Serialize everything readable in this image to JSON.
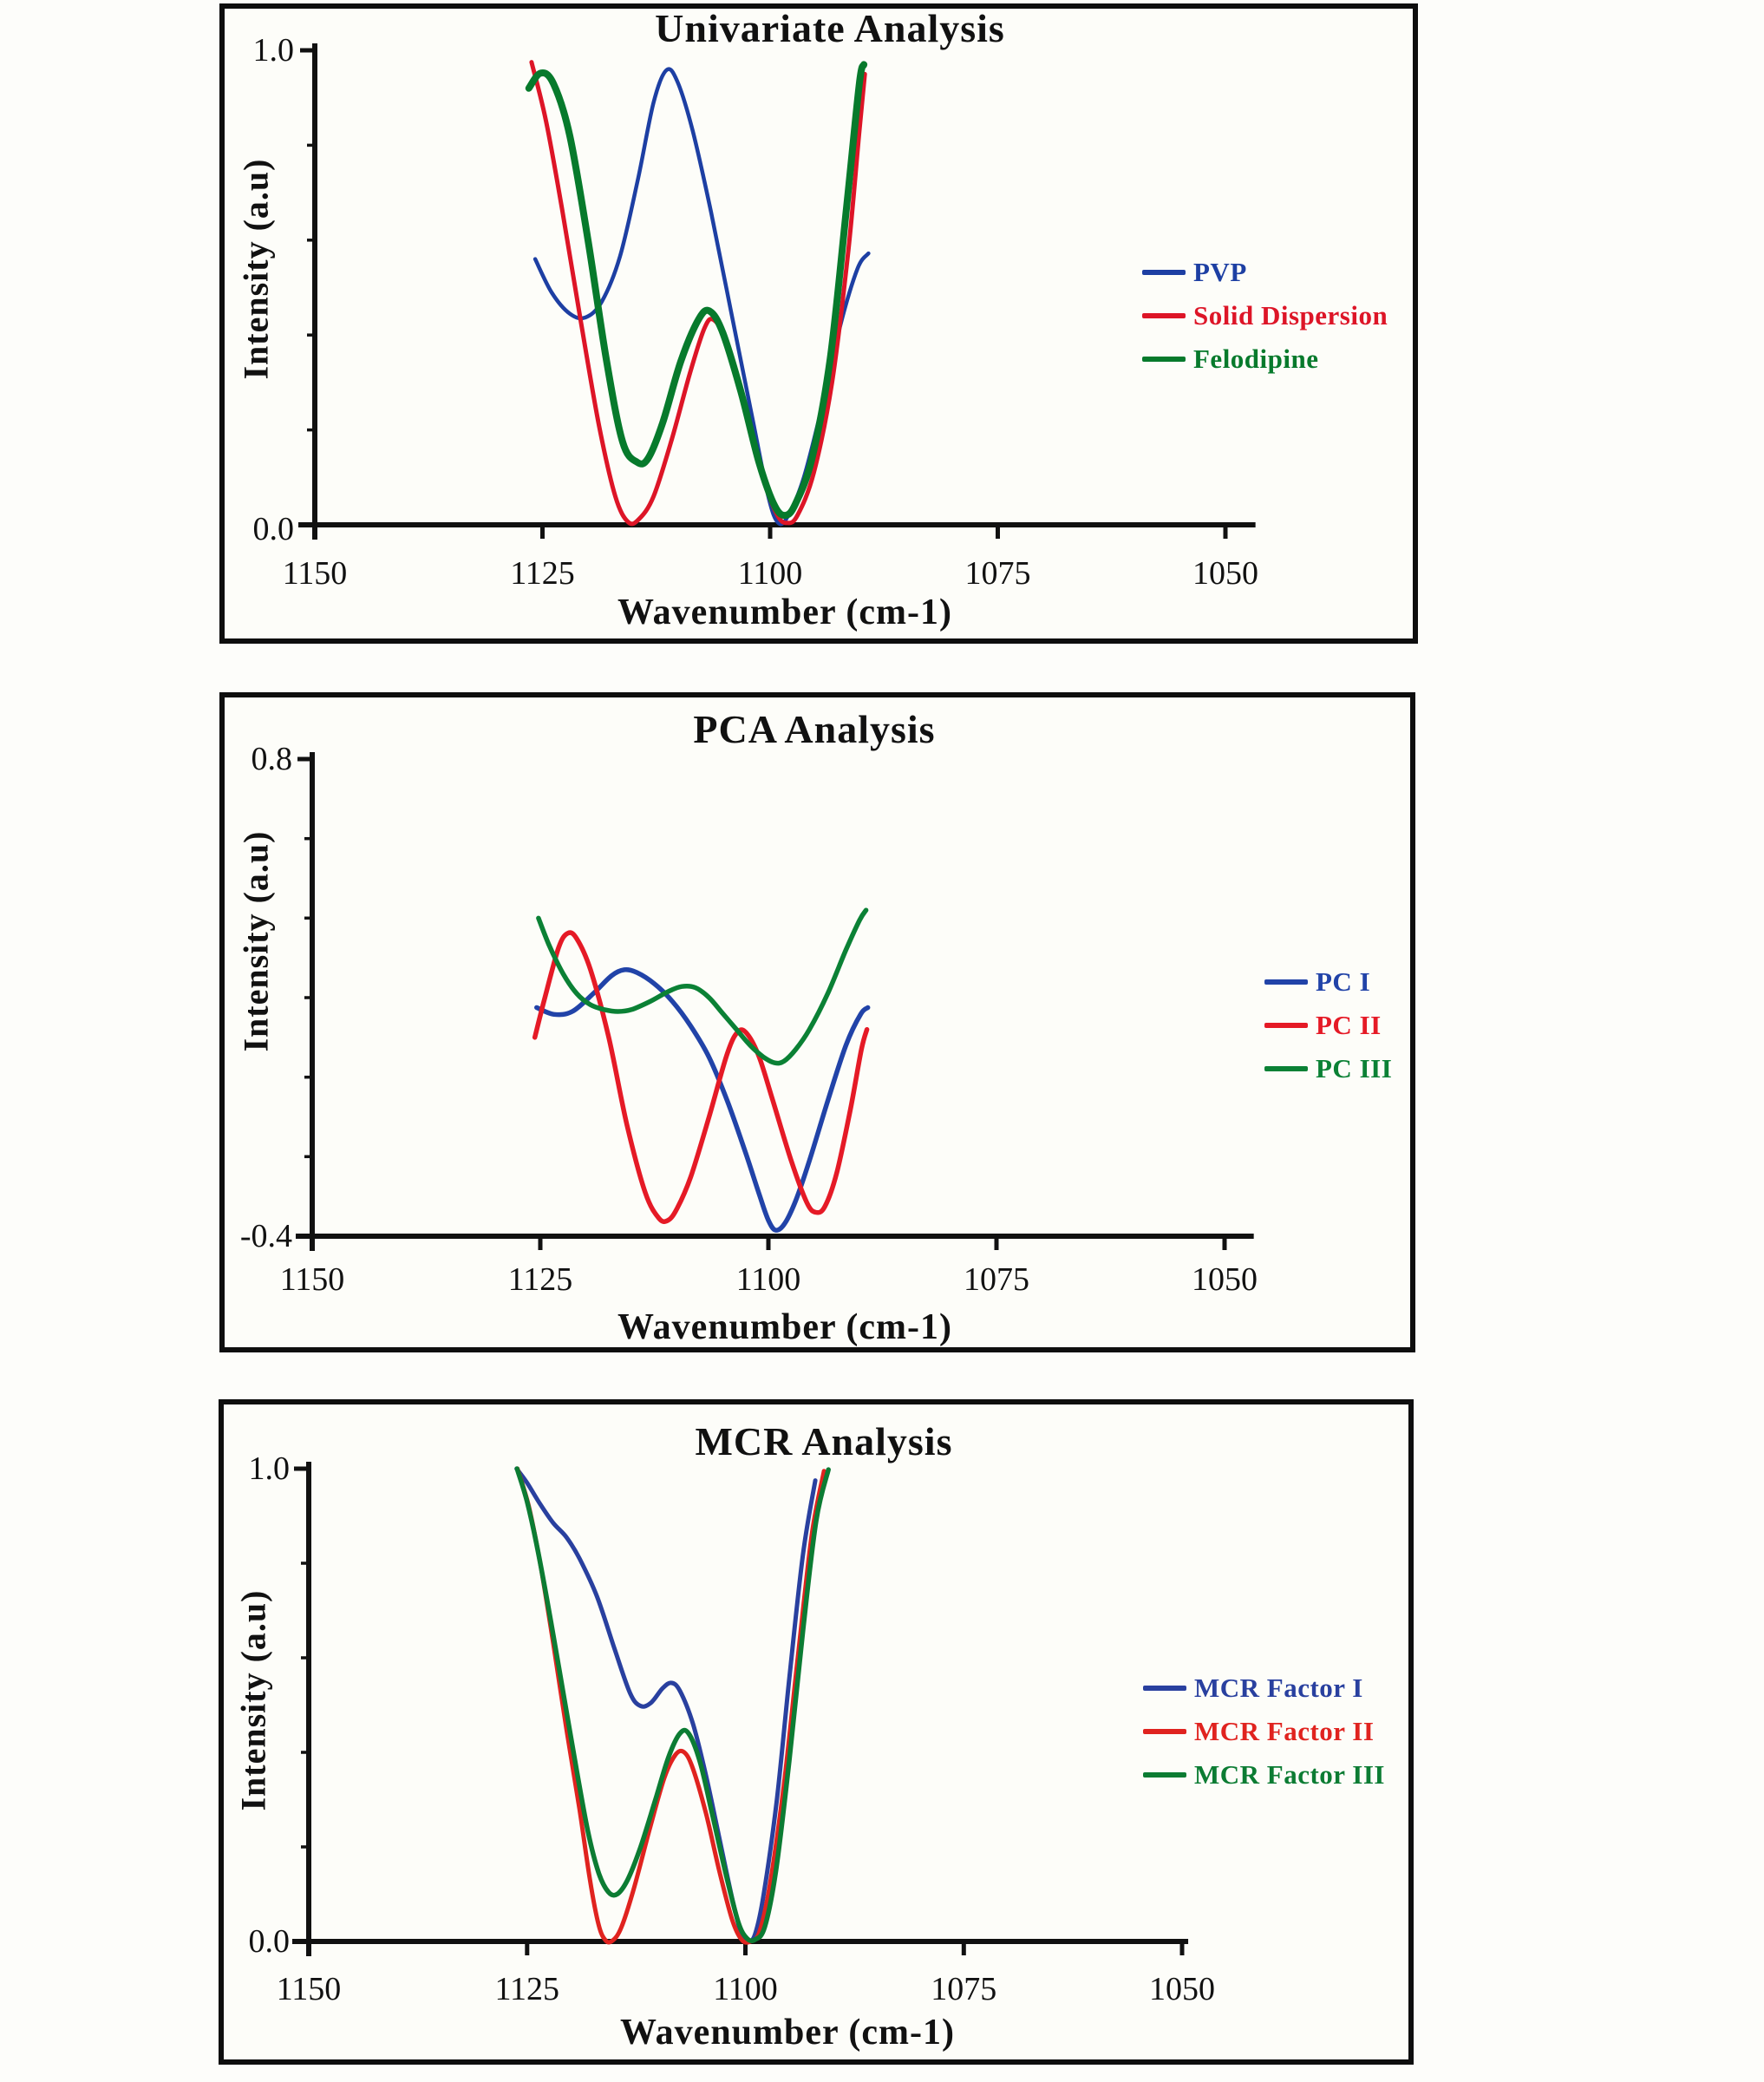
{
  "page": {
    "background": "#fdfdfa",
    "axis_color": "#111111"
  },
  "chart_data": [
    {
      "type": "line",
      "title": "Univariate Analysis",
      "xlabel": "Wavenumber (cm-1)",
      "ylabel": "Intensity (a.u)",
      "x_ticks": [
        "1150",
        "1125",
        "1100",
        "1075",
        "1050"
      ],
      "x_tick_values": [
        1150,
        1125,
        1100,
        1075,
        1050
      ],
      "x_axis_reversed": true,
      "xlim": [
        1150,
        1046.7
      ],
      "ylim": [
        0.0,
        1.0
      ],
      "y_tick_top": "1.0",
      "y_tick_bottom": "0.0",
      "grid": false,
      "legend_position": "right",
      "series": [
        {
          "name": "PVP",
          "color": "#1d3fa3",
          "width": 4.5,
          "points": [
            [
              1125.8,
              0.56
            ],
            [
              1124,
              0.49
            ],
            [
              1122,
              0.445
            ],
            [
              1120.3,
              0.437
            ],
            [
              1118.5,
              0.47
            ],
            [
              1116.5,
              0.565
            ],
            [
              1114.5,
              0.73
            ],
            [
              1112.8,
              0.89
            ],
            [
              1111.4,
              0.958
            ],
            [
              1110.2,
              0.935
            ],
            [
              1108.5,
              0.83
            ],
            [
              1106.5,
              0.66
            ],
            [
              1104.3,
              0.45
            ],
            [
              1102,
              0.23
            ],
            [
              1100.2,
              0.06
            ],
            [
              1099.1,
              0.004
            ],
            [
              1098,
              0.02
            ],
            [
              1096.3,
              0.1
            ],
            [
              1094.3,
              0.25
            ],
            [
              1092.3,
              0.42
            ],
            [
              1090.4,
              0.54
            ],
            [
              1089.2,
              0.572
            ]
          ]
        },
        {
          "name": "Solid Dispersion",
          "color": "#dd1527",
          "width": 5,
          "points": [
            [
              1126.2,
              0.975
            ],
            [
              1124.6,
              0.85
            ],
            [
              1122.8,
              0.66
            ],
            [
              1120.8,
              0.43
            ],
            [
              1118.8,
              0.21
            ],
            [
              1117,
              0.06
            ],
            [
              1115.6,
              0.006
            ],
            [
              1114.4,
              0.012
            ],
            [
              1112.8,
              0.06
            ],
            [
              1110.8,
              0.18
            ],
            [
              1108.8,
              0.32
            ],
            [
              1107.2,
              0.415
            ],
            [
              1106.2,
              0.432
            ],
            [
              1104.8,
              0.385
            ],
            [
              1102.8,
              0.25
            ],
            [
              1100.8,
              0.1
            ],
            [
              1099.2,
              0.02
            ],
            [
              1098.1,
              0.004
            ],
            [
              1097,
              0.02
            ],
            [
              1095.2,
              0.11
            ],
            [
              1093.2,
              0.3
            ],
            [
              1091.4,
              0.58
            ],
            [
              1090.2,
              0.83
            ],
            [
              1089.6,
              0.95
            ]
          ]
        },
        {
          "name": "Felodipine",
          "color": "#077a2c",
          "width": 8,
          "points": [
            [
              1126.5,
              0.92
            ],
            [
              1125.2,
              0.952
            ],
            [
              1123.8,
              0.93
            ],
            [
              1122,
              0.82
            ],
            [
              1120,
              0.6
            ],
            [
              1118,
              0.35
            ],
            [
              1116.2,
              0.175
            ],
            [
              1114.6,
              0.132
            ],
            [
              1113.4,
              0.14
            ],
            [
              1111.8,
              0.215
            ],
            [
              1109.8,
              0.345
            ],
            [
              1107.8,
              0.435
            ],
            [
              1106.6,
              0.45
            ],
            [
              1105.2,
              0.405
            ],
            [
              1103.2,
              0.28
            ],
            [
              1101.2,
              0.13
            ],
            [
              1099.5,
              0.04
            ],
            [
              1098.3,
              0.02
            ],
            [
              1097.2,
              0.045
            ],
            [
              1095.4,
              0.14
            ],
            [
              1093.4,
              0.35
            ],
            [
              1091.6,
              0.67
            ],
            [
              1090.2,
              0.93
            ],
            [
              1089.7,
              0.97
            ]
          ]
        }
      ]
    },
    {
      "type": "line",
      "title": "PCA Analysis",
      "xlabel": "Wavenumber (cm-1)",
      "ylabel": "Intensity (a.u)",
      "x_ticks": [
        "1150",
        "1125",
        "1100",
        "1075",
        "1050"
      ],
      "x_tick_values": [
        1150,
        1125,
        1100,
        1075,
        1050
      ],
      "x_axis_reversed": true,
      "xlim": [
        1150,
        1046.8
      ],
      "ylim": [
        -0.4,
        0.8
      ],
      "y_tick_top": "0.8",
      "y_tick_bottom": "-0.4",
      "grid": false,
      "legend_position": "right",
      "series": [
        {
          "name": "PC I",
          "color": "#2143a8",
          "width": 5.5,
          "points": [
            [
              1125.4,
              0.175
            ],
            [
              1123.5,
              0.158
            ],
            [
              1121.5,
              0.165
            ],
            [
              1119.2,
              0.21
            ],
            [
              1117.2,
              0.255
            ],
            [
              1115.8,
              0.27
            ],
            [
              1114.4,
              0.263
            ],
            [
              1112.5,
              0.235
            ],
            [
              1110.5,
              0.19
            ],
            [
              1108.5,
              0.128
            ],
            [
              1106.5,
              0.05
            ],
            [
              1104.5,
              -0.06
            ],
            [
              1102.5,
              -0.19
            ],
            [
              1101,
              -0.295
            ],
            [
              1100,
              -0.36
            ],
            [
              1099.2,
              -0.385
            ],
            [
              1098.2,
              -0.368
            ],
            [
              1097,
              -0.31
            ],
            [
              1095.5,
              -0.21
            ],
            [
              1093.5,
              -0.06
            ],
            [
              1091.5,
              0.08
            ],
            [
              1089.9,
              0.158
            ],
            [
              1089.1,
              0.175
            ]
          ]
        },
        {
          "name": "PC II",
          "color": "#e51a26",
          "width": 5.5,
          "points": [
            [
              1125.6,
              0.1
            ],
            [
              1124.5,
              0.2
            ],
            [
              1123,
              0.325
            ],
            [
              1122,
              0.362
            ],
            [
              1121,
              0.348
            ],
            [
              1119.5,
              0.27
            ],
            [
              1117.5,
              0.1
            ],
            [
              1115.5,
              -0.12
            ],
            [
              1113.5,
              -0.29
            ],
            [
              1112,
              -0.355
            ],
            [
              1111,
              -0.36
            ],
            [
              1110,
              -0.33
            ],
            [
              1108.5,
              -0.25
            ],
            [
              1106.5,
              -0.1
            ],
            [
              1104.5,
              0.06
            ],
            [
              1103.3,
              0.115
            ],
            [
              1102.3,
              0.108
            ],
            [
              1101,
              0.05
            ],
            [
              1099.5,
              -0.06
            ],
            [
              1097.5,
              -0.21
            ],
            [
              1095.8,
              -0.315
            ],
            [
              1094.8,
              -0.34
            ],
            [
              1093.8,
              -0.325
            ],
            [
              1092.5,
              -0.24
            ],
            [
              1091,
              -0.08
            ],
            [
              1089.8,
              0.07
            ],
            [
              1089.2,
              0.12
            ]
          ]
        },
        {
          "name": "PC III",
          "color": "#0b8135",
          "width": 5.5,
          "points": [
            [
              1125.2,
              0.4
            ],
            [
              1124,
              0.33
            ],
            [
              1122.5,
              0.26
            ],
            [
              1121,
              0.21
            ],
            [
              1119.5,
              0.182
            ],
            [
              1118,
              0.17
            ],
            [
              1116.5,
              0.165
            ],
            [
              1115,
              0.17
            ],
            [
              1113,
              0.19
            ],
            [
              1111,
              0.215
            ],
            [
              1109.5,
              0.228
            ],
            [
              1108,
              0.225
            ],
            [
              1106.5,
              0.2
            ],
            [
              1105,
              0.16
            ],
            [
              1103.5,
              0.12
            ],
            [
              1102,
              0.08
            ],
            [
              1100.5,
              0.05
            ],
            [
              1099.3,
              0.036
            ],
            [
              1098.3,
              0.04
            ],
            [
              1097,
              0.07
            ],
            [
              1095.5,
              0.12
            ],
            [
              1093.5,
              0.21
            ],
            [
              1091.5,
              0.32
            ],
            [
              1090,
              0.395
            ],
            [
              1089.3,
              0.42
            ]
          ]
        }
      ]
    },
    {
      "type": "line",
      "title": "MCR Analysis",
      "xlabel": "Wavenumber (cm-1)",
      "ylabel": "Intensity (a.u)",
      "x_ticks": [
        "1150",
        "1125",
        "1100",
        "1075",
        "1050"
      ],
      "x_tick_values": [
        1150,
        1125,
        1100,
        1075,
        1050
      ],
      "x_axis_reversed": true,
      "xlim": [
        1150,
        1049.3
      ],
      "ylim": [
        0.0,
        1.0
      ],
      "y_tick_top": "1.0",
      "y_tick_bottom": "0.0",
      "grid": false,
      "legend_position": "right",
      "series": [
        {
          "name": "MCR Factor I",
          "color": "#29409f",
          "width": 5,
          "points": [
            [
              1126.2,
              1.0
            ],
            [
              1125,
              0.97
            ],
            [
              1123.5,
              0.925
            ],
            [
              1122,
              0.885
            ],
            [
              1120.5,
              0.855
            ],
            [
              1119,
              0.81
            ],
            [
              1117,
              0.73
            ],
            [
              1115,
              0.62
            ],
            [
              1113.2,
              0.525
            ],
            [
              1112,
              0.498
            ],
            [
              1110.8,
              0.505
            ],
            [
              1109.5,
              0.535
            ],
            [
              1108.5,
              0.547
            ],
            [
              1107.5,
              0.53
            ],
            [
              1106,
              0.46
            ],
            [
              1104.5,
              0.35
            ],
            [
              1103,
              0.22
            ],
            [
              1101.5,
              0.09
            ],
            [
              1100.4,
              0.01
            ],
            [
              1099.7,
              0.0
            ],
            [
              1098.9,
              0.015
            ],
            [
              1097.9,
              0.1
            ],
            [
              1096.4,
              0.3
            ],
            [
              1094.9,
              0.57
            ],
            [
              1093.4,
              0.82
            ],
            [
              1092,
              0.975
            ]
          ]
        },
        {
          "name": "MCR Factor II",
          "color": "#e0231f",
          "width": 5,
          "points": [
            [
              1126.1,
              1.0
            ],
            [
              1124.8,
              0.92
            ],
            [
              1123.5,
              0.8
            ],
            [
              1122,
              0.63
            ],
            [
              1120.5,
              0.45
            ],
            [
              1119,
              0.28
            ],
            [
              1117.8,
              0.13
            ],
            [
              1116.8,
              0.035
            ],
            [
              1116,
              0.002
            ],
            [
              1115.2,
              0.002
            ],
            [
              1114.2,
              0.03
            ],
            [
              1112.8,
              0.11
            ],
            [
              1111,
              0.235
            ],
            [
              1109.3,
              0.345
            ],
            [
              1108,
              0.395
            ],
            [
              1107,
              0.4
            ],
            [
              1106,
              0.365
            ],
            [
              1104.5,
              0.27
            ],
            [
              1103,
              0.15
            ],
            [
              1101.5,
              0.045
            ],
            [
              1100.4,
              0.003
            ],
            [
              1099.4,
              0.0
            ],
            [
              1098.4,
              0.02
            ],
            [
              1097.2,
              0.12
            ],
            [
              1095.6,
              0.33
            ],
            [
              1094,
              0.6
            ],
            [
              1092.4,
              0.86
            ],
            [
              1091,
              0.995
            ]
          ]
        },
        {
          "name": "MCR Factor III",
          "color": "#0c7c33",
          "width": 5.5,
          "points": [
            [
              1126.15,
              1.0
            ],
            [
              1125,
              0.93
            ],
            [
              1123.8,
              0.83
            ],
            [
              1122.3,
              0.68
            ],
            [
              1120.8,
              0.52
            ],
            [
              1119.3,
              0.36
            ],
            [
              1118,
              0.23
            ],
            [
              1116.8,
              0.145
            ],
            [
              1115.7,
              0.105
            ],
            [
              1114.7,
              0.1
            ],
            [
              1113.5,
              0.13
            ],
            [
              1112,
              0.2
            ],
            [
              1110.3,
              0.3
            ],
            [
              1108.8,
              0.39
            ],
            [
              1107.5,
              0.44
            ],
            [
              1106.5,
              0.44
            ],
            [
              1105.2,
              0.38
            ],
            [
              1103.8,
              0.27
            ],
            [
              1102.2,
              0.14
            ],
            [
              1100.8,
              0.04
            ],
            [
              1099.8,
              0.006
            ],
            [
              1098.9,
              0.004
            ],
            [
              1097.8,
              0.03
            ],
            [
              1096.5,
              0.15
            ],
            [
              1095,
              0.38
            ],
            [
              1093.4,
              0.66
            ],
            [
              1091.9,
              0.89
            ],
            [
              1090.5,
              0.998
            ]
          ]
        }
      ]
    }
  ]
}
